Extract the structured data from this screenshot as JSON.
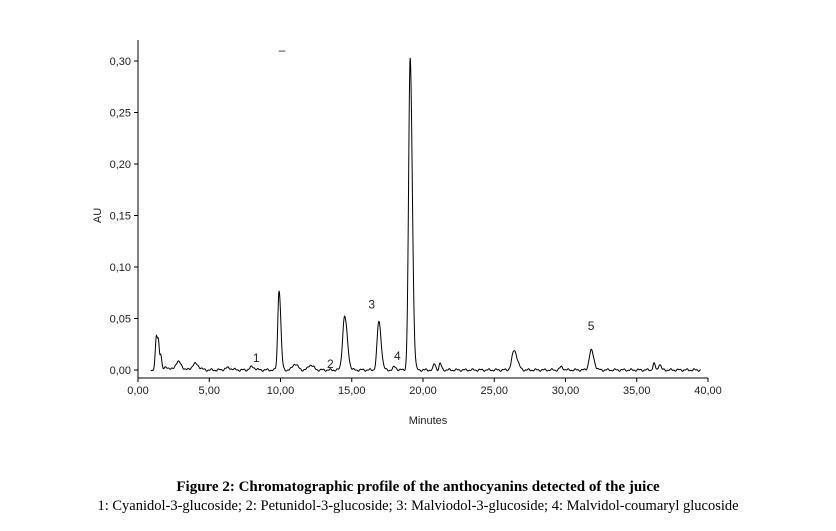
{
  "chart_data": {
    "type": "line",
    "title": "",
    "xlabel": "Minutes",
    "ylabel": "AU",
    "xlim": [
      0,
      40
    ],
    "ylim": [
      -0.01,
      0.33
    ],
    "grid": false,
    "x_ticks": [
      "0,00",
      "5,00",
      "10,00",
      "15,00",
      "20,00",
      "25,00",
      "30,00",
      "35,00",
      "40,00"
    ],
    "y_ticks": [
      "0,00",
      "0,05",
      "0,10",
      "0,15",
      "0,20",
      "0,25",
      "0,30"
    ],
    "series": [
      {
        "x": [
          1.3,
          1.45,
          1.6,
          2.0,
          2.8,
          4.0,
          6.3,
          8.0,
          9.9,
          11.0,
          12.1,
          14.5,
          16.9,
          18.0,
          19.1,
          20.8,
          21.2,
          26.4,
          29.7,
          31.8,
          36.2,
          36.6
        ],
        "y": [
          0.033,
          0.016,
          0.014,
          0.003,
          0.008,
          0.006,
          0.002,
          0.003,
          0.078,
          0.006,
          0.005,
          0.052,
          0.047,
          0.003,
          0.302,
          0.006,
          0.006,
          0.019,
          0.003,
          0.019,
          0.006,
          0.006
        ],
        "color": "#000000"
      }
    ],
    "annotations": [
      {
        "text": "1",
        "x": 8.3,
        "y": 0.006
      },
      {
        "text": "2",
        "x": 13.5,
        "y": 0.0
      },
      {
        "text": "3",
        "x": 16.4,
        "y": 0.058
      },
      {
        "text": "4",
        "x": 18.2,
        "y": 0.008
      },
      {
        "text": "5",
        "x": 31.8,
        "y": 0.037
      },
      {
        "text": "–",
        "x": 10.1,
        "y": 0.305
      }
    ]
  },
  "caption": {
    "title": "Figure 2: Chromatographic profile of the anthocyanins detected of the juice",
    "legend": "1: Cyanidol-3-glucoside; 2: Petunidol-3-glucoside; 3: Malviodol-3-glucoside; 4: Malvidol-coumaryl glucoside"
  }
}
